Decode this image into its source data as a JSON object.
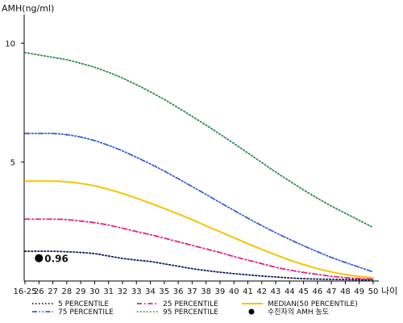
{
  "chart_data": {
    "type": "line",
    "ylabel": "AMH(ng/ml)",
    "xlabel": "나이",
    "categories": [
      "16-25",
      "26",
      "27",
      "28",
      "29",
      "30",
      "31",
      "32",
      "33",
      "34",
      "35",
      "36",
      "37",
      "38",
      "39",
      "40",
      "41",
      "42",
      "43",
      "44",
      "45",
      "46",
      "47",
      "48",
      "49",
      "50"
    ],
    "ylim": [
      0,
      11.2
    ],
    "yticks": [
      5,
      10
    ],
    "grid": false,
    "legend_position": "bottom",
    "series": [
      {
        "name": "5 PERCENTILE",
        "color": "#0d1a5e",
        "style": "dotted",
        "values": [
          1.25,
          1.25,
          1.25,
          1.23,
          1.2,
          1.15,
          1.05,
          0.95,
          0.88,
          0.82,
          0.72,
          0.62,
          0.52,
          0.44,
          0.37,
          0.31,
          0.26,
          0.21,
          0.17,
          0.13,
          0.1,
          0.08,
          0.07,
          0.06,
          0.05,
          0.05
        ]
      },
      {
        "name": "25 PERCENTILE",
        "color": "#e0208a",
        "style": "dashdot",
        "values": [
          2.6,
          2.6,
          2.6,
          2.58,
          2.52,
          2.45,
          2.35,
          2.22,
          2.08,
          1.95,
          1.8,
          1.65,
          1.5,
          1.35,
          1.2,
          1.03,
          0.88,
          0.73,
          0.58,
          0.46,
          0.36,
          0.28,
          0.2,
          0.14,
          0.1,
          0.08
        ]
      },
      {
        "name": "MEDIAN(50 PERCENTILE)",
        "color": "#f5c400",
        "style": "solid",
        "values": [
          4.2,
          4.2,
          4.2,
          4.17,
          4.1,
          4.0,
          3.85,
          3.68,
          3.48,
          3.27,
          3.05,
          2.82,
          2.58,
          2.32,
          2.07,
          1.82,
          1.57,
          1.33,
          1.1,
          0.88,
          0.69,
          0.52,
          0.38,
          0.27,
          0.19,
          0.14
        ]
      },
      {
        "name": "75 PERCENTILE",
        "color": "#3a5fcd",
        "style": "dashdotdot",
        "values": [
          6.2,
          6.2,
          6.2,
          6.15,
          6.05,
          5.9,
          5.7,
          5.47,
          5.2,
          4.92,
          4.62,
          4.3,
          3.97,
          3.64,
          3.3,
          2.97,
          2.64,
          2.33,
          2.03,
          1.75,
          1.48,
          1.23,
          0.99,
          0.78,
          0.58,
          0.38
        ]
      },
      {
        "name": "95 PERCENTILE",
        "color": "#2e8b57",
        "style": "dotted",
        "values": [
          9.6,
          9.5,
          9.4,
          9.3,
          9.15,
          8.98,
          8.77,
          8.53,
          8.25,
          7.95,
          7.63,
          7.28,
          6.92,
          6.55,
          6.17,
          5.78,
          5.38,
          4.98,
          4.58,
          4.2,
          3.83,
          3.48,
          3.15,
          2.85,
          2.55,
          2.25
        ]
      }
    ],
    "marker": {
      "name": "수진자의 AMH 농도",
      "x": "26",
      "y": 0.96,
      "label": "0.96",
      "color": "#000000"
    }
  }
}
